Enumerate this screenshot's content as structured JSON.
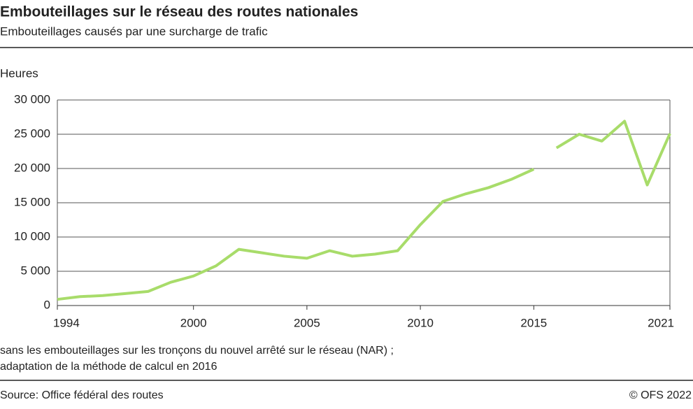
{
  "chart_data": {
    "type": "line",
    "title": "Embouteillages sur le réseau des routes nationales",
    "subtitle": "Embouteillages causés par une surcharge de trafic",
    "y_label": "Heures",
    "notes": [
      "sans les embouteillages sur les tronçons du nouvel arrêté sur le réseau (NAR) ;",
      "adaptation de la méthode de calcul en 2016"
    ],
    "source": "Source: Office fédéral des routes",
    "copyright": "© OFS 2022",
    "x": [
      1994,
      1995,
      1996,
      1997,
      1998,
      1999,
      2000,
      2001,
      2002,
      2003,
      2004,
      2005,
      2006,
      2007,
      2008,
      2009,
      2010,
      2011,
      2012,
      2013,
      2014,
      2015,
      2016,
      2017,
      2018,
      2019,
      2020,
      2021
    ],
    "series": [
      {
        "color": "#a8dc6a",
        "values": [
          900,
          1300,
          1450,
          1750,
          2050,
          3400,
          4300,
          5800,
          8200,
          7700,
          7200,
          6900,
          8000,
          7200,
          7500,
          8000,
          11800,
          15200,
          16300,
          17200,
          18400,
          19900,
          null,
          null,
          null,
          null,
          null,
          null
        ]
      },
      {
        "color": "#a8dc6a",
        "values": [
          null,
          null,
          null,
          null,
          null,
          null,
          null,
          null,
          null,
          null,
          null,
          null,
          null,
          null,
          null,
          null,
          null,
          null,
          null,
          null,
          null,
          null,
          23000,
          25000,
          24000,
          26900,
          17600,
          25100
        ]
      }
    ],
    "xlim": [
      1994,
      2021
    ],
    "xticks": [
      1994,
      2000,
      2005,
      2010,
      2015,
      2021
    ],
    "ylim": [
      0,
      30000
    ],
    "yticks": [
      0,
      {
        "value": 5000,
        "label": "5 000"
      },
      {
        "value": 10000,
        "label": "10 000"
      },
      {
        "value": 15000,
        "label": "15 000"
      },
      {
        "value": 20000,
        "label": "20 000"
      },
      {
        "value": 25000,
        "label": "25 000"
      },
      {
        "value": 30000,
        "label": "30 000"
      }
    ],
    "grid": true
  }
}
